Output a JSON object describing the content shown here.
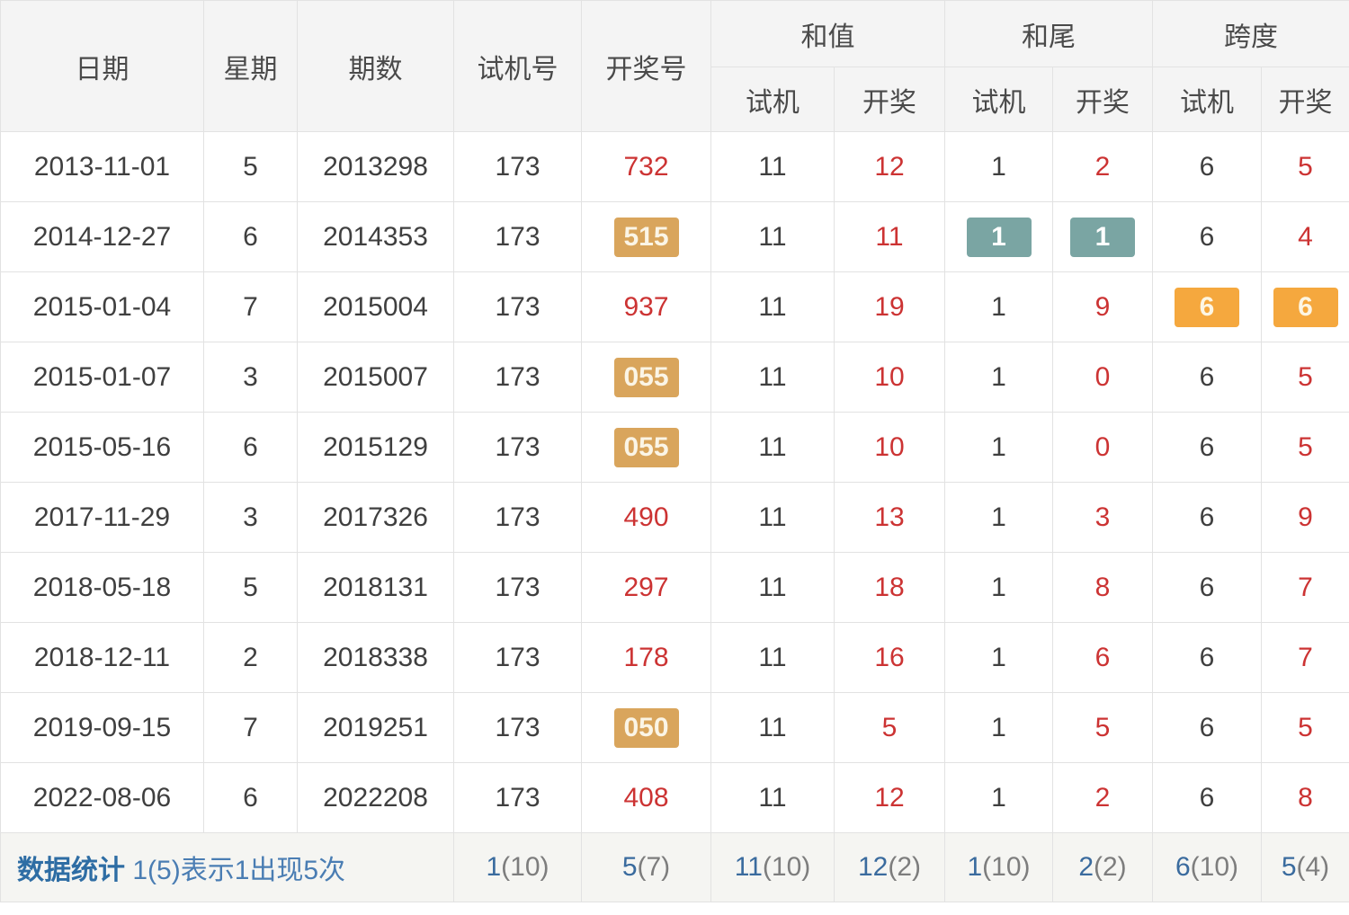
{
  "table": {
    "header": {
      "main": [
        "日期",
        "星期",
        "期数",
        "试机号",
        "开奖号"
      ],
      "groups": [
        "和值",
        "和尾",
        "跨度"
      ],
      "sub_row": [
        "试机",
        "开奖",
        "试机",
        "开奖",
        "试机",
        "开奖"
      ]
    },
    "col_keys": [
      "date",
      "week",
      "period",
      "test-no",
      "open-no",
      "sum-test",
      "sum-open",
      "tail-test",
      "tail-open",
      "span-test",
      "span-open"
    ],
    "rows": [
      [
        {
          "t": "2013-11-01"
        },
        {
          "t": "5"
        },
        {
          "t": "2013298"
        },
        {
          "t": "173"
        },
        {
          "t": "732",
          "r": true
        },
        {
          "t": "11"
        },
        {
          "t": "12",
          "r": true
        },
        {
          "t": "1"
        },
        {
          "t": "2",
          "r": true
        },
        {
          "t": "6"
        },
        {
          "t": "5",
          "r": true
        }
      ],
      [
        {
          "t": "2014-12-27"
        },
        {
          "t": "6"
        },
        {
          "t": "2014353"
        },
        {
          "t": "173"
        },
        {
          "t": "515",
          "b": "gold"
        },
        {
          "t": "11"
        },
        {
          "t": "11",
          "r": true
        },
        {
          "t": "1",
          "b": "teal"
        },
        {
          "t": "1",
          "b": "teal"
        },
        {
          "t": "6"
        },
        {
          "t": "4",
          "r": true
        }
      ],
      [
        {
          "t": "2015-01-04"
        },
        {
          "t": "7"
        },
        {
          "t": "2015004"
        },
        {
          "t": "173"
        },
        {
          "t": "937",
          "r": true
        },
        {
          "t": "11"
        },
        {
          "t": "19",
          "r": true
        },
        {
          "t": "1"
        },
        {
          "t": "9",
          "r": true
        },
        {
          "t": "6",
          "b": "orange"
        },
        {
          "t": "6",
          "b": "orange"
        }
      ],
      [
        {
          "t": "2015-01-07"
        },
        {
          "t": "3"
        },
        {
          "t": "2015007"
        },
        {
          "t": "173"
        },
        {
          "t": "055",
          "b": "gold"
        },
        {
          "t": "11"
        },
        {
          "t": "10",
          "r": true
        },
        {
          "t": "1"
        },
        {
          "t": "0",
          "r": true
        },
        {
          "t": "6"
        },
        {
          "t": "5",
          "r": true
        }
      ],
      [
        {
          "t": "2015-05-16"
        },
        {
          "t": "6"
        },
        {
          "t": "2015129"
        },
        {
          "t": "173"
        },
        {
          "t": "055",
          "b": "gold"
        },
        {
          "t": "11"
        },
        {
          "t": "10",
          "r": true
        },
        {
          "t": "1"
        },
        {
          "t": "0",
          "r": true
        },
        {
          "t": "6"
        },
        {
          "t": "5",
          "r": true
        }
      ],
      [
        {
          "t": "2017-11-29"
        },
        {
          "t": "3"
        },
        {
          "t": "2017326"
        },
        {
          "t": "173"
        },
        {
          "t": "490",
          "r": true
        },
        {
          "t": "11"
        },
        {
          "t": "13",
          "r": true
        },
        {
          "t": "1"
        },
        {
          "t": "3",
          "r": true
        },
        {
          "t": "6"
        },
        {
          "t": "9",
          "r": true
        }
      ],
      [
        {
          "t": "2018-05-18"
        },
        {
          "t": "5"
        },
        {
          "t": "2018131"
        },
        {
          "t": "173"
        },
        {
          "t": "297",
          "r": true
        },
        {
          "t": "11"
        },
        {
          "t": "18",
          "r": true
        },
        {
          "t": "1"
        },
        {
          "t": "8",
          "r": true
        },
        {
          "t": "6"
        },
        {
          "t": "7",
          "r": true
        }
      ],
      [
        {
          "t": "2018-12-11"
        },
        {
          "t": "2"
        },
        {
          "t": "2018338"
        },
        {
          "t": "173"
        },
        {
          "t": "178",
          "r": true
        },
        {
          "t": "11"
        },
        {
          "t": "16",
          "r": true
        },
        {
          "t": "1"
        },
        {
          "t": "6",
          "r": true
        },
        {
          "t": "6"
        },
        {
          "t": "7",
          "r": true
        }
      ],
      [
        {
          "t": "2019-09-15"
        },
        {
          "t": "7"
        },
        {
          "t": "2019251"
        },
        {
          "t": "173"
        },
        {
          "t": "050",
          "b": "gold"
        },
        {
          "t": "11"
        },
        {
          "t": "5",
          "r": true
        },
        {
          "t": "1"
        },
        {
          "t": "5",
          "r": true
        },
        {
          "t": "6"
        },
        {
          "t": "5",
          "r": true
        }
      ],
      [
        {
          "t": "2022-08-06"
        },
        {
          "t": "6"
        },
        {
          "t": "2022208"
        },
        {
          "t": "173"
        },
        {
          "t": "408",
          "r": true
        },
        {
          "t": "11"
        },
        {
          "t": "12",
          "r": true
        },
        {
          "t": "1"
        },
        {
          "t": "2",
          "r": true
        },
        {
          "t": "6"
        },
        {
          "t": "8",
          "r": true
        }
      ]
    ]
  },
  "footer": {
    "label": "数据统计",
    "note": "1(5)表示1出现5次",
    "stats": [
      {
        "value": "1",
        "times": "(10)"
      },
      {
        "value": "5",
        "times": "(7)"
      },
      {
        "value": "11",
        "times": "(10)"
      },
      {
        "value": "12",
        "times": "(2)"
      },
      {
        "value": "1",
        "times": "(10)"
      },
      {
        "value": "2",
        "times": "(2)"
      },
      {
        "value": "6",
        "times": "(10)"
      },
      {
        "value": "5",
        "times": "(4)"
      }
    ]
  },
  "colors": {
    "red_value": "#cc3333",
    "dark_value": "#3f3f3f",
    "header_bg": "#f4f4f4",
    "footer_bg": "#f5f5f2",
    "grid_border": "#e2e2e2",
    "badge_gold": "#d9a55c",
    "badge_teal": "#7aa5a3",
    "badge_orange": "#f5a83e",
    "stats_title_blue": "#2e6da4",
    "stats_num_blue": "#3a6b9e",
    "stats_times_gray": "#7d7d7d"
  }
}
